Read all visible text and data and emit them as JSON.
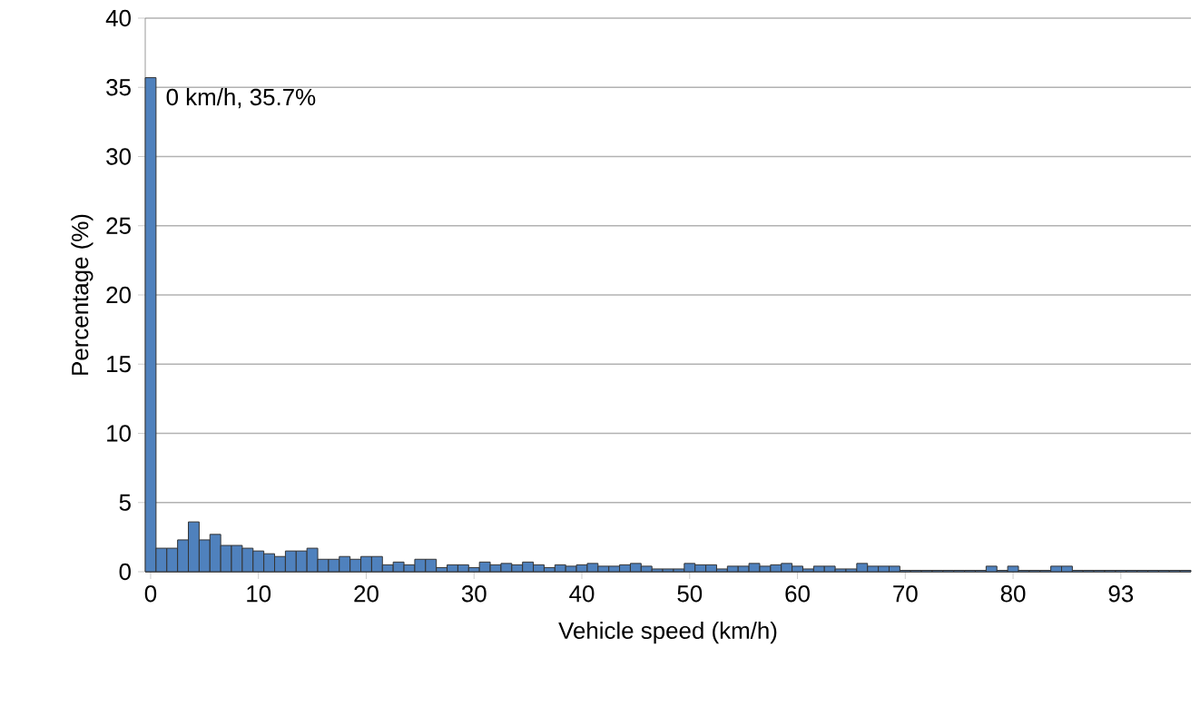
{
  "chart_data": {
    "type": "bar",
    "xlabel": "Vehicle speed (km/h)",
    "ylabel": "Percentage (%)",
    "categories": [
      "0",
      null,
      null,
      null,
      null,
      null,
      null,
      null,
      null,
      null,
      "10",
      null,
      null,
      null,
      null,
      null,
      null,
      null,
      null,
      null,
      "20",
      null,
      null,
      null,
      null,
      null,
      null,
      null,
      null,
      null,
      "30",
      null,
      null,
      null,
      null,
      null,
      null,
      null,
      null,
      null,
      "40",
      null,
      null,
      null,
      null,
      null,
      null,
      null,
      null,
      null,
      "50",
      null,
      null,
      null,
      null,
      null,
      null,
      null,
      null,
      null,
      "60",
      null,
      null,
      null,
      null,
      null,
      null,
      null,
      null,
      null,
      "70",
      null,
      null,
      null,
      null,
      null,
      null,
      null,
      null,
      null,
      "80",
      null,
      null,
      null,
      null,
      null,
      null,
      null,
      null,
      null,
      "93",
      null,
      null,
      null,
      null,
      null,
      null
    ],
    "values": [
      35.7,
      1.7,
      1.7,
      2.3,
      3.6,
      2.3,
      2.7,
      1.9,
      1.9,
      1.7,
      1.5,
      1.3,
      1.1,
      1.5,
      1.5,
      1.7,
      0.9,
      0.9,
      1.1,
      0.9,
      1.1,
      1.1,
      0.5,
      0.7,
      0.5,
      0.9,
      0.9,
      0.3,
      0.5,
      0.5,
      0.3,
      0.7,
      0.5,
      0.6,
      0.5,
      0.7,
      0.5,
      0.3,
      0.5,
      0.4,
      0.5,
      0.6,
      0.4,
      0.4,
      0.5,
      0.6,
      0.4,
      0.2,
      0.2,
      0.2,
      0.6,
      0.5,
      0.5,
      0.2,
      0.4,
      0.4,
      0.6,
      0.4,
      0.5,
      0.6,
      0.4,
      0.2,
      0.4,
      0.4,
      0.2,
      0.2,
      0.6,
      0.4,
      0.4,
      0.4,
      0.1,
      0.1,
      0.1,
      0.1,
      0.1,
      0.1,
      0.1,
      0.1,
      0.4,
      0.1,
      0.4,
      0.1,
      0.1,
      0.1,
      0.4,
      0.4,
      0.1,
      0.1,
      0.1,
      0.1,
      0.1,
      0.1,
      0.1,
      0.1,
      0.1,
      0.1,
      0.1
    ],
    "color": "#4f81bd",
    "ylim": [
      0,
      40
    ],
    "yticks": [
      0,
      5,
      10,
      15,
      20,
      25,
      30,
      35,
      40
    ],
    "grid": "y",
    "annotations": [
      {
        "text": "0 km/h, 35.7%",
        "x": "0",
        "y": 35.7
      }
    ]
  }
}
